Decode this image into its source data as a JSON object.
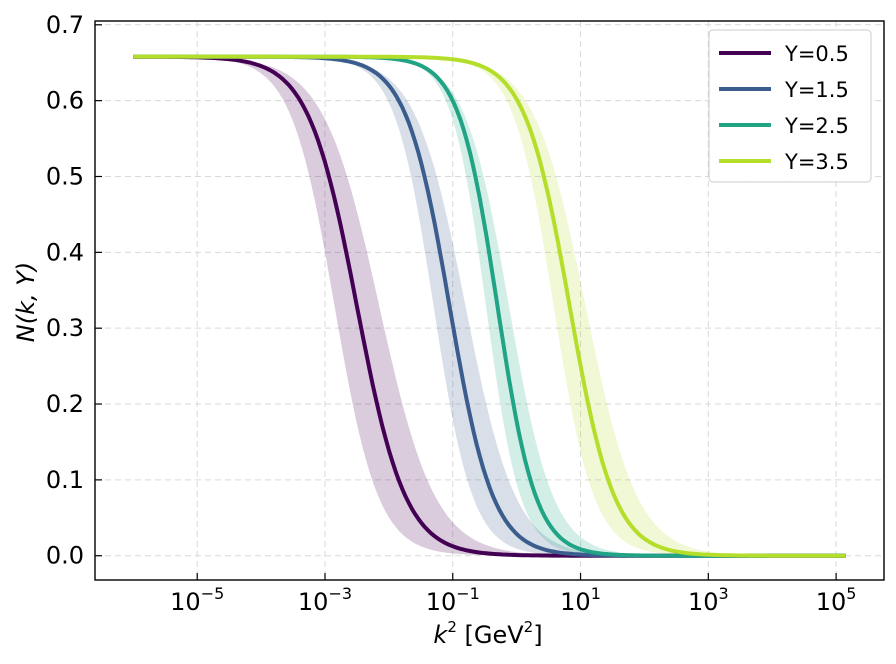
{
  "chart_data": {
    "type": "line",
    "xscale": "log",
    "xlabel": "k",
    "xlabel_sup": "2",
    "xlabel_unit_prefix": "[GeV",
    "xlabel_unit_sup": "2",
    "xlabel_unit_suffix": "]",
    "ylabel": "N(k, Y)",
    "xlim_log10": [
      -6.6,
      5.75
    ],
    "ylim": [
      -0.032,
      0.705
    ],
    "x_ticks": [
      {
        "base": "10",
        "exp": "−5",
        "log10": -5
      },
      {
        "base": "10",
        "exp": "−3",
        "log10": -3
      },
      {
        "base": "10",
        "exp": "−1",
        "log10": -1
      },
      {
        "base": "10",
        "exp": "1",
        "log10": 1
      },
      {
        "base": "10",
        "exp": "3",
        "log10": 3
      },
      {
        "base": "10",
        "exp": "5",
        "log10": 5
      }
    ],
    "y_ticks": [
      {
        "label": "0.0",
        "value": 0.0
      },
      {
        "label": "0.1",
        "value": 0.1
      },
      {
        "label": "0.2",
        "value": 0.2
      },
      {
        "label": "0.3",
        "value": 0.3
      },
      {
        "label": "0.4",
        "value": 0.4
      },
      {
        "label": "0.5",
        "value": 0.5
      },
      {
        "label": "0.6",
        "value": 0.6
      },
      {
        "label": "0.7",
        "value": 0.7
      }
    ],
    "grid": true,
    "legend_position": "top-right",
    "x_range_log10": [
      -6.0,
      5.15
    ],
    "plateau": 0.658,
    "series": [
      {
        "name": "Y=0.5",
        "color": "#440154",
        "center_log10": -2.5,
        "width": 0.38,
        "band": 0.35
      },
      {
        "name": "Y=1.5",
        "color": "#3b5d8d",
        "center_log10": -1.05,
        "width": 0.34,
        "band": 0.25
      },
      {
        "name": "Y=2.5",
        "color": "#21a385",
        "center_log10": -0.3,
        "width": 0.3,
        "band": 0.18
      },
      {
        "name": "Y=3.5",
        "color": "#b5de2b",
        "center_log10": 0.83,
        "width": 0.35,
        "band": 0.25
      }
    ]
  }
}
